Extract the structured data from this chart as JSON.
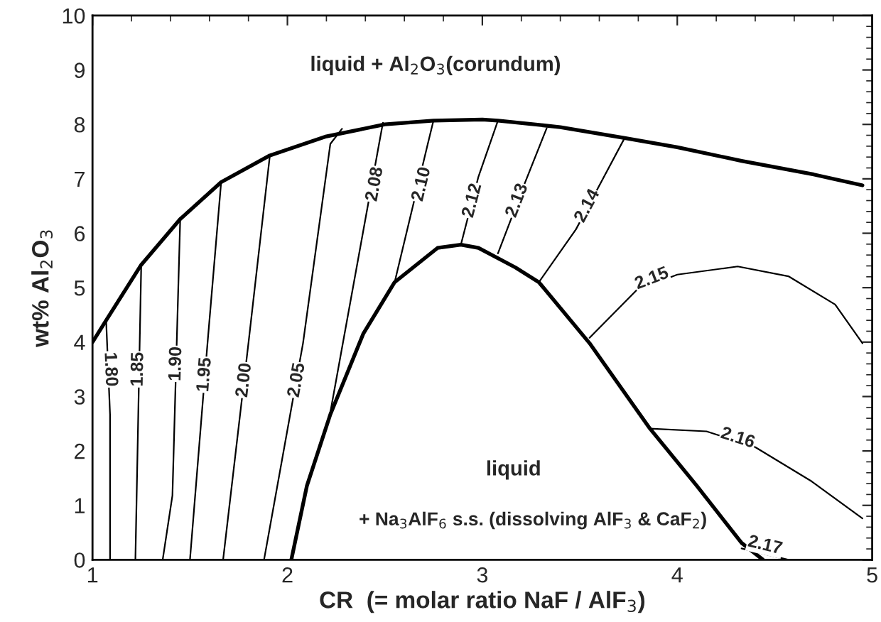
{
  "chart_data": {
    "type": "line",
    "xlabel": "CR  (= molar ratio NaF / AlF$_{3}$)",
    "ylabel": "wt% Al$_{2}$O$_{3}$",
    "xlim": [
      1,
      5
    ],
    "ylim": [
      0,
      10
    ],
    "xticks": [
      1,
      2,
      3,
      4,
      5
    ],
    "yticks": [
      0,
      1,
      2,
      3,
      4,
      5,
      6,
      7,
      8,
      9,
      10
    ],
    "grid": false,
    "legend": false,
    "marker": "none",
    "line_style": "solid",
    "series": [
      {
        "color": "#000000",
        "x": [
          1.0,
          1.07,
          1.25,
          1.45,
          1.66,
          1.91,
          2.2,
          2.5,
          2.75,
          3.0,
          3.08,
          3.4,
          3.73,
          4.0,
          4.33,
          4.7,
          4.95
        ],
        "values": [
          4.0,
          4.4,
          5.42,
          6.26,
          6.94,
          7.43,
          7.78,
          8.0,
          8.07,
          8.09,
          8.07,
          7.95,
          7.75,
          7.58,
          7.33,
          7.08,
          6.88
        ]
      },
      {
        "color": "#000000",
        "x": [
          2.02,
          2.1,
          2.22,
          2.39,
          2.55,
          2.77,
          2.89,
          2.98,
          3.17,
          3.29,
          3.55,
          3.86,
          4.1,
          4.33,
          4.44
        ],
        "values": [
          0,
          1.36,
          2.67,
          4.16,
          5.1,
          5.73,
          5.79,
          5.73,
          5.37,
          5.1,
          3.98,
          2.41,
          1.36,
          0.31,
          0
        ]
      },
      {
        "color": "#000000",
        "x": [
          1.07,
          1.09,
          1.09
        ],
        "values": [
          4.4,
          2.67,
          0
        ]
      },
      {
        "color": "#000000",
        "x": [
          1.25,
          1.22
        ],
        "values": [
          5.42,
          0
        ]
      },
      {
        "color": "#000000",
        "x": [
          1.45,
          1.41,
          1.36
        ],
        "values": [
          6.26,
          1.18,
          0
        ]
      },
      {
        "color": "#000000",
        "x": [
          1.66,
          1.59,
          1.5
        ],
        "values": [
          6.94,
          3.98,
          0
        ]
      },
      {
        "color": "#000000",
        "x": [
          1.91,
          1.8,
          1.67
        ],
        "values": [
          7.43,
          3.98,
          0
        ]
      },
      {
        "color": "#000000",
        "x": [
          2.28,
          2.22,
          2.08,
          1.88
        ],
        "values": [
          7.92,
          7.64,
          3.98,
          0
        ]
      },
      {
        "color": "#000000",
        "x": [
          2.49,
          2.47,
          2.22
        ],
        "values": [
          8.03,
          7.64,
          2.71
        ]
      },
      {
        "color": "#000000",
        "x": [
          2.75,
          2.72,
          2.55
        ],
        "values": [
          8.08,
          7.64,
          5.1
        ]
      },
      {
        "color": "#000000",
        "x": [
          3.08,
          2.98,
          2.89
        ],
        "values": [
          8.07,
          7.04,
          5.79
        ]
      },
      {
        "color": "#000000",
        "x": [
          3.33,
          3.22,
          3.08
        ],
        "values": [
          7.93,
          6.94,
          5.63
        ]
      },
      {
        "color": "#000000",
        "x": [
          3.73,
          3.48,
          3.29
        ],
        "values": [
          7.75,
          6.07,
          5.1
        ]
      },
      {
        "color": "#000000",
        "x": [
          3.55,
          3.79,
          4.0,
          4.31,
          4.57,
          4.81,
          4.95
        ],
        "values": [
          4.08,
          4.95,
          5.24,
          5.39,
          5.21,
          4.69,
          3.98
        ]
      },
      {
        "color": "#000000",
        "x": [
          3.86,
          4.15,
          4.4,
          4.69,
          4.95
        ],
        "values": [
          2.41,
          2.36,
          2.07,
          1.44,
          0.76
        ]
      },
      {
        "color": "#000000",
        "x": [
          4.33,
          4.57
        ],
        "values": [
          0.21,
          0
        ]
      }
    ],
    "annotations": [
      "liquid + Al$_{2}$O$_{3}$(corundum)",
      "liquid",
      "+ Na$_{3}$AlF$_{6}$ s.s. (dissolving AlF$_{3}$ & CaF$_{2}$)",
      {
        "text": "1.80",
        "x": 1.09,
        "y": 3.5
      },
      {
        "text": "1.85",
        "x": 1.235,
        "y": 3.5
      },
      {
        "text": "1.90",
        "x": 1.43,
        "y": 3.6
      },
      {
        "text": "1.95",
        "x": 1.577,
        "y": 3.4
      },
      {
        "text": "2.00",
        "x": 1.78,
        "y": 3.3
      },
      {
        "text": "2.05",
        "x": 2.05,
        "y": 3.3
      },
      {
        "text": "2.08",
        "x": 2.45,
        "y": 6.9
      },
      {
        "text": "2.10",
        "x": 2.69,
        "y": 6.9
      },
      {
        "text": "2.12",
        "x": 2.95,
        "y": 6.6
      },
      {
        "text": "2.13",
        "x": 3.18,
        "y": 6.6
      },
      {
        "text": "2.14",
        "x": 3.54,
        "y": 6.5
      },
      {
        "text": "2.15",
        "x": 3.87,
        "y": 5.16
      },
      {
        "text": "2.16",
        "x": 4.31,
        "y": 2.23
      },
      {
        "text": "2.17",
        "x": 4.45,
        "y": 0.26
      }
    ]
  }
}
